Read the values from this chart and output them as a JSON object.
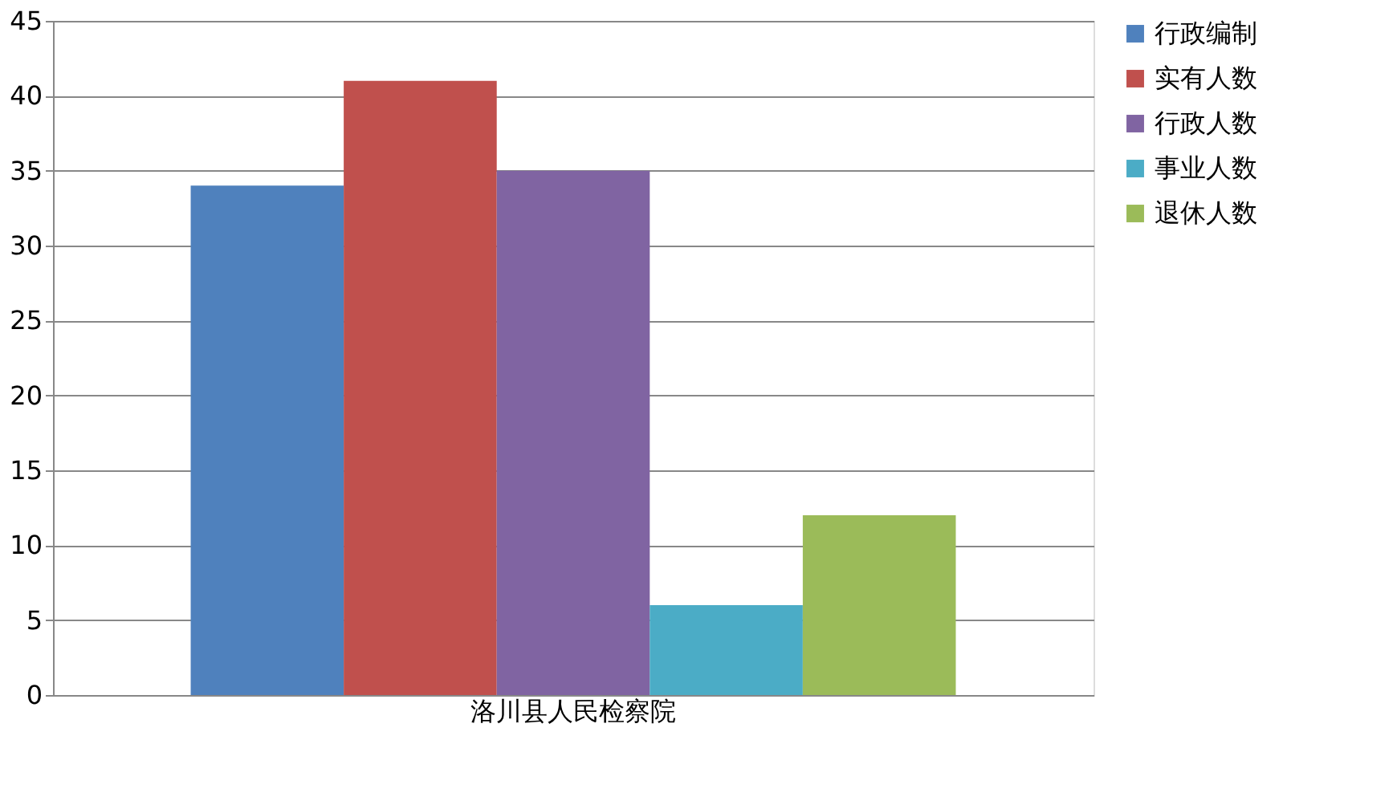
{
  "chart_data": {
    "type": "bar",
    "categories": [
      "洛川县人民检察院"
    ],
    "series": [
      {
        "name": "行政编制",
        "color": "#4f81bd",
        "values": [
          34
        ]
      },
      {
        "name": "实有人数",
        "color": "#c0504d",
        "values": [
          41
        ]
      },
      {
        "name": "行政人数",
        "color": "#8064a2",
        "values": [
          35
        ]
      },
      {
        "name": "事业人数",
        "color": "#4bacc6",
        "values": [
          6
        ]
      },
      {
        "name": "退休人数",
        "color": "#9bbb59",
        "values": [
          12
        ]
      }
    ],
    "ylim": [
      0,
      45
    ],
    "yticks": [
      0,
      5,
      10,
      15,
      20,
      25,
      30,
      35,
      40,
      45
    ],
    "grid": "y",
    "legend": "right"
  }
}
